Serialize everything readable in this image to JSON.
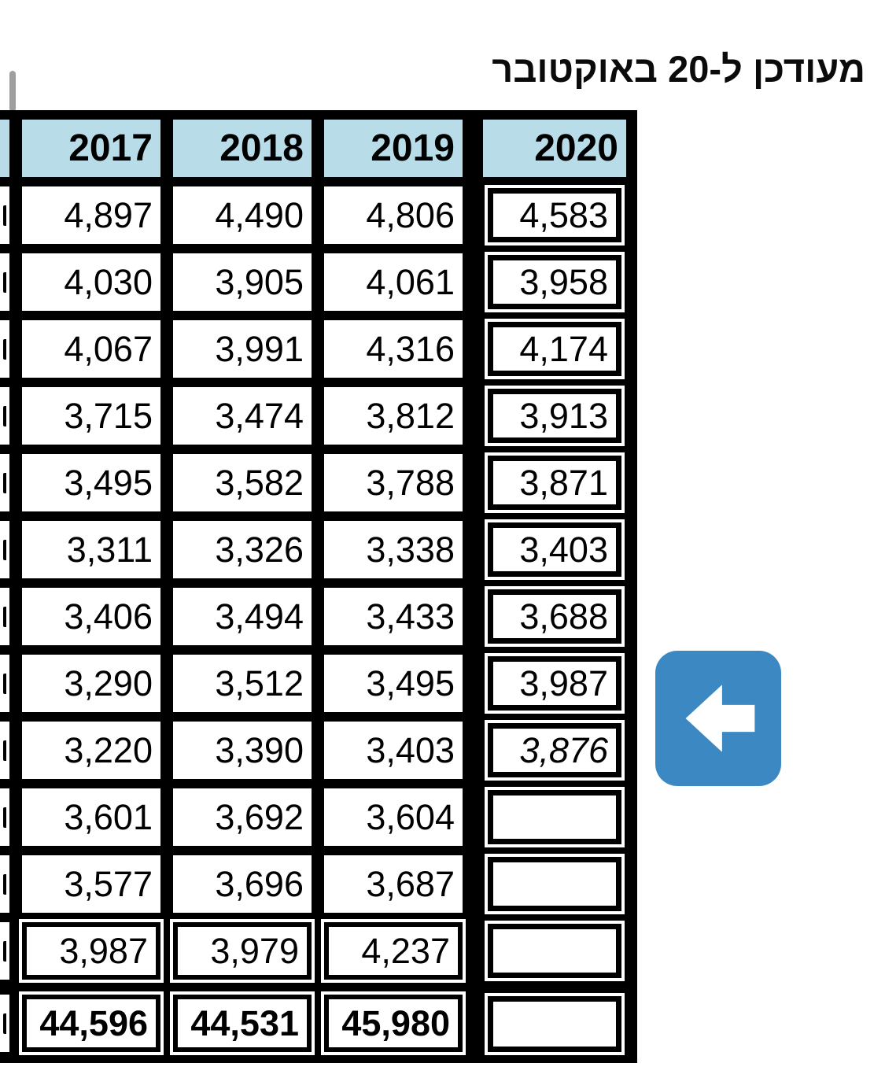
{
  "title": "מעודכן ל-20 באוקטובר",
  "table": {
    "columns": [
      {
        "year": "2017",
        "values": [
          "4,897",
          "4,030",
          "4,067",
          "3,715",
          "3,495",
          "3,311",
          "3,406",
          "3,290",
          "3,220",
          "3,601",
          "3,577",
          "3,987"
        ],
        "total": "44,596"
      },
      {
        "year": "2018",
        "values": [
          "4,490",
          "3,905",
          "3,991",
          "3,474",
          "3,582",
          "3,326",
          "3,494",
          "3,512",
          "3,390",
          "3,692",
          "3,696",
          "3,979"
        ],
        "total": "44,531"
      },
      {
        "year": "2019",
        "values": [
          "4,806",
          "4,061",
          "4,316",
          "3,812",
          "3,788",
          "3,338",
          "3,433",
          "3,495",
          "3,403",
          "3,604",
          "3,687",
          "4,237"
        ],
        "total": "45,980"
      },
      {
        "year": "2020",
        "values": [
          "4,583",
          "3,958",
          "4,174",
          "3,913",
          "3,871",
          "3,403",
          "3,688",
          "3,987",
          "3,876",
          "",
          "",
          ""
        ],
        "total": "",
        "italic_value_index": 8
      }
    ]
  },
  "arrow_button": {
    "icon": "left-arrow-icon"
  },
  "colors": {
    "header_bg": "#b9dce9",
    "grid_border": "#000000",
    "arrow_blue": "#3b88c3",
    "artifact_gray": "#9e9e9e"
  }
}
